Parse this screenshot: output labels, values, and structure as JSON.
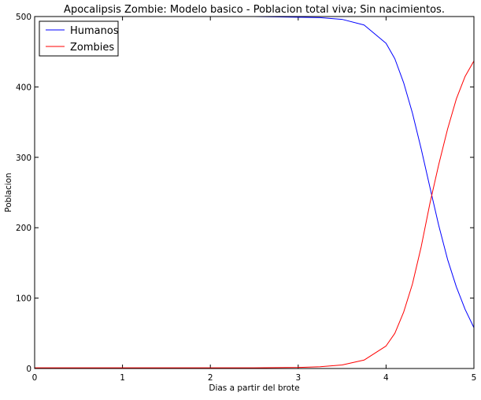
{
  "chart_data": {
    "type": "line",
    "title": "Apocalipsis Zombie: Modelo basico - Poblacion total viva; Sin nacimientos.",
    "xlabel": "Dias a partir del brote",
    "ylabel": "Poblacion",
    "xlim": [
      0,
      5
    ],
    "ylim": [
      0,
      500
    ],
    "xticks": [
      "0",
      "1",
      "2",
      "3",
      "4",
      "5"
    ],
    "yticks": [
      "0",
      "100",
      "200",
      "300",
      "400",
      "500"
    ],
    "grid": false,
    "legend_position": "upper-left",
    "x": [
      0,
      0.5,
      1,
      1.5,
      2,
      2.5,
      3,
      3.25,
      3.5,
      3.75,
      4,
      4.1,
      4.2,
      4.3,
      4.4,
      4.5,
      4.6,
      4.7,
      4.8,
      4.9,
      5
    ],
    "series": [
      {
        "name": "Humanos",
        "color": "#0000ff",
        "values": [
          500,
          500,
          500,
          500,
          500,
          500,
          499,
          498.5,
          496,
          488,
          462,
          440,
          406,
          363,
          312,
          257,
          203,
          155,
          116,
          84,
          58
        ]
      },
      {
        "name": "Zombies",
        "color": "#ff0000",
        "values": [
          1,
          1,
          1,
          1,
          1,
          1,
          1.5,
          2.5,
          5,
          12,
          32,
          50,
          80,
          120,
          173,
          235,
          290,
          340,
          383,
          415,
          437
        ]
      }
    ]
  }
}
